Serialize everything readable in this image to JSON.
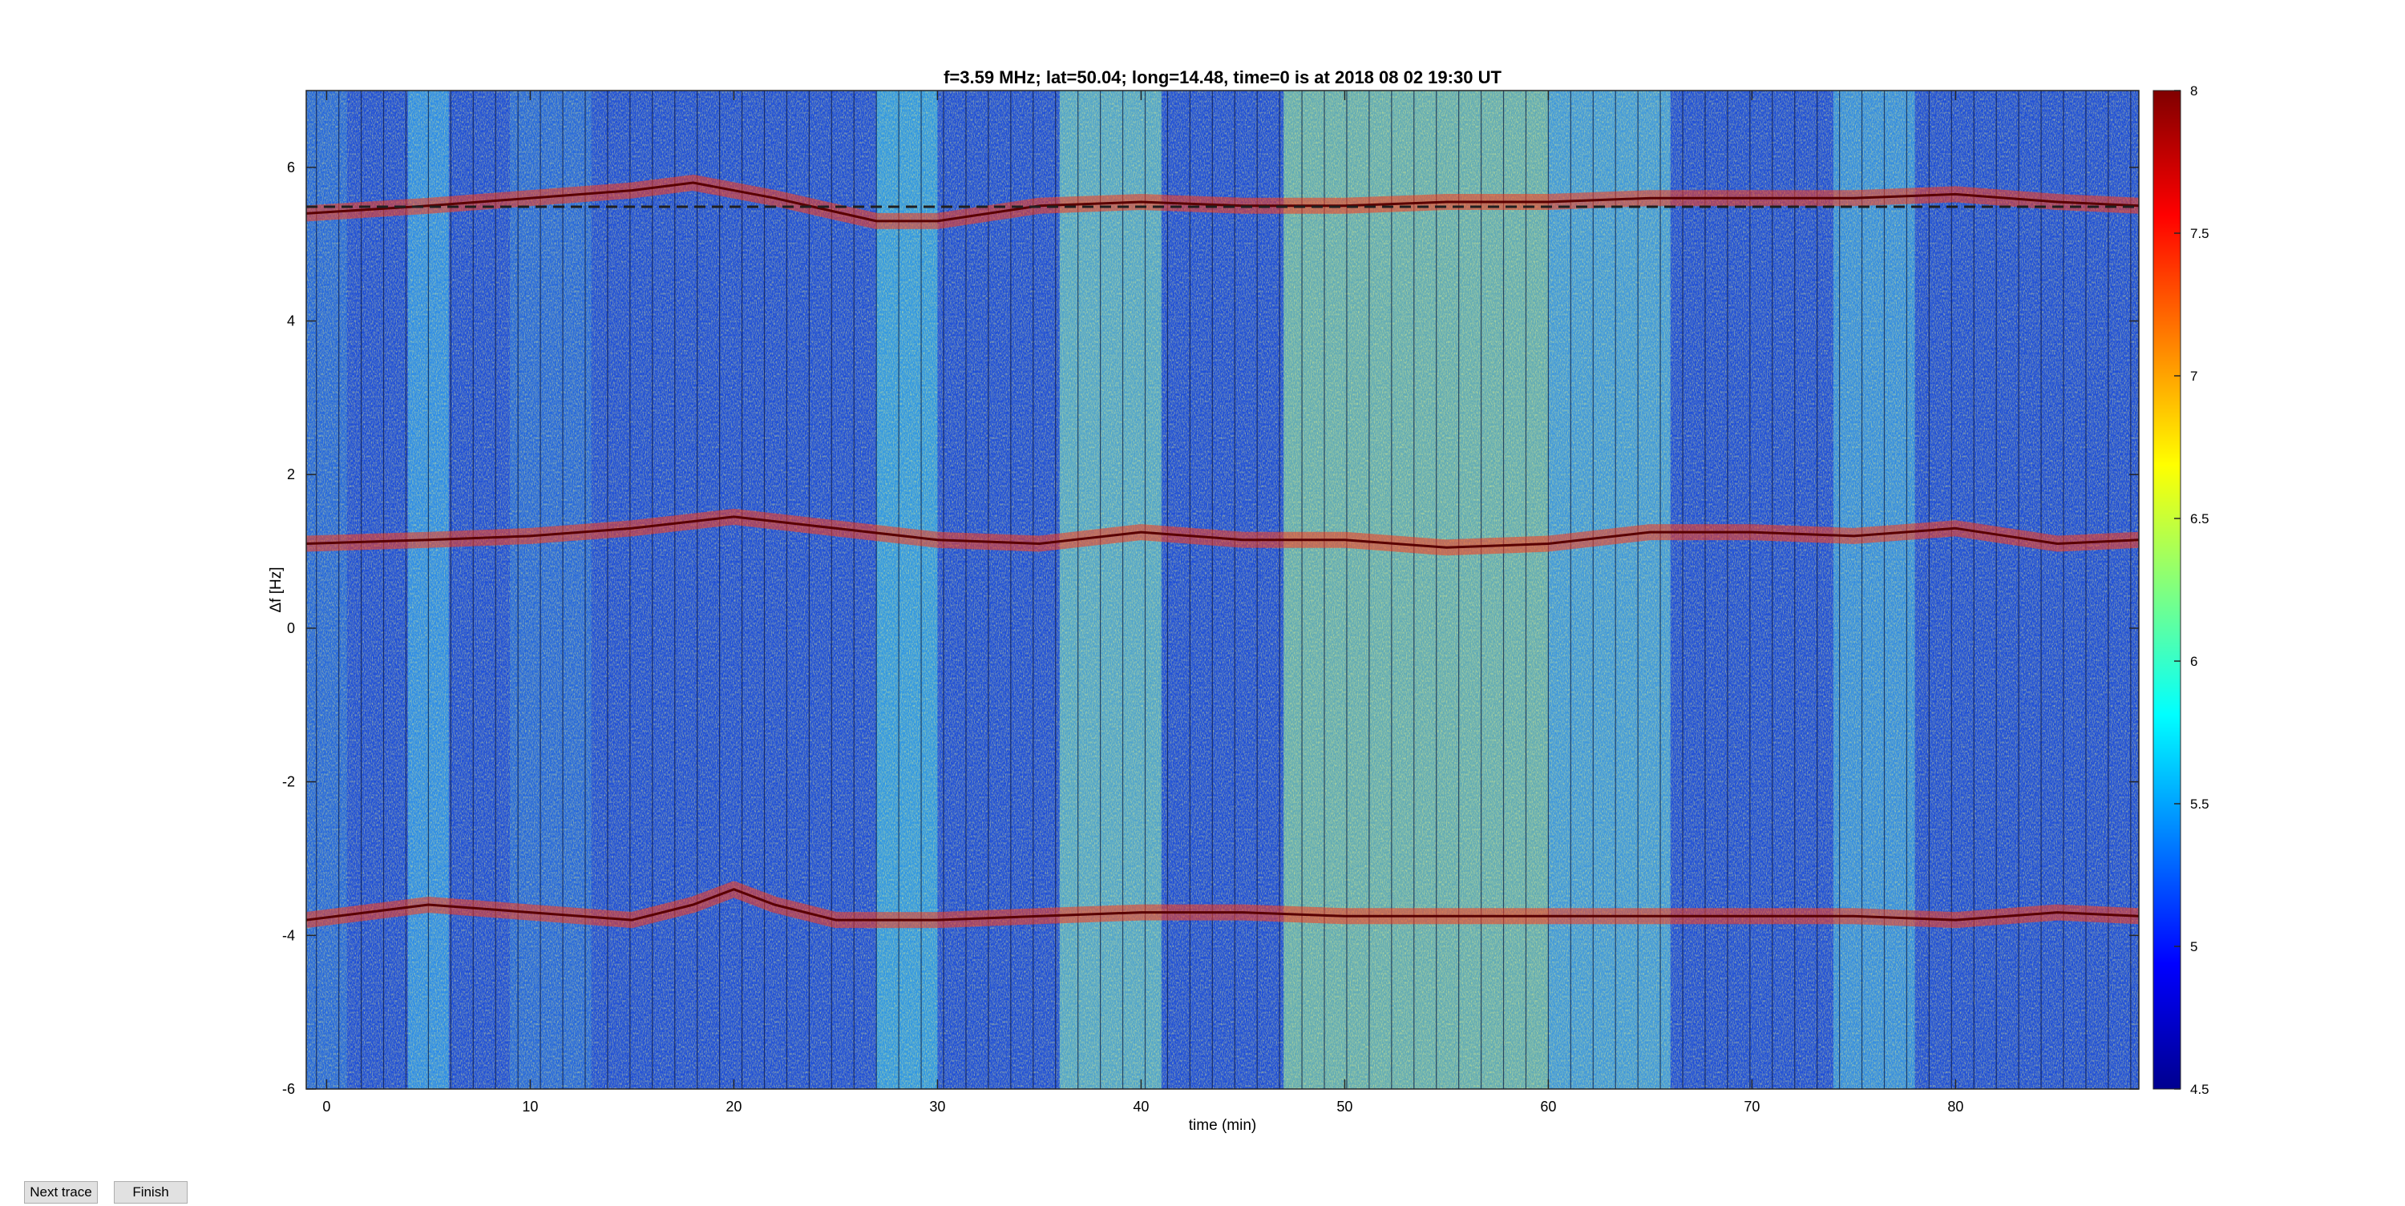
{
  "chart_data": {
    "type": "heatmap",
    "title": "f=3.59 MHz;  lat=50.04; long=14.48, time=0 is at 2018 08 02 19:30 UT",
    "xlabel": "time (min)",
    "ylabel": "Δf [Hz]",
    "xlim": [
      -1,
      89
    ],
    "ylim": [
      -6,
      7
    ],
    "xticks": [
      0,
      10,
      20,
      30,
      40,
      50,
      60,
      70,
      80
    ],
    "yticks": [
      -6,
      -4,
      -2,
      0,
      2,
      4,
      6
    ],
    "colormap": "jet",
    "clim": [
      4.5,
      8
    ],
    "colorbar_ticks": [
      "4.5",
      "5",
      "5.5",
      "6",
      "6.5",
      "7",
      "7.5",
      "8"
    ],
    "background_level": 5.3,
    "traces": [
      {
        "x": [
          -1,
          5,
          10,
          15,
          18,
          22,
          27,
          30,
          35,
          40,
          45,
          50,
          55,
          60,
          65,
          70,
          75,
          80,
          85,
          89
        ],
        "y": [
          5.4,
          5.5,
          5.6,
          5.7,
          5.8,
          5.6,
          5.3,
          5.3,
          5.5,
          5.55,
          5.5,
          5.5,
          5.55,
          5.55,
          5.6,
          5.6,
          5.6,
          5.65,
          5.55,
          5.5
        ]
      },
      {
        "x": [
          -1,
          5,
          10,
          15,
          20,
          25,
          30,
          35,
          40,
          45,
          50,
          55,
          60,
          65,
          70,
          75,
          80,
          85,
          89
        ],
        "y": [
          1.1,
          1.15,
          1.2,
          1.3,
          1.45,
          1.3,
          1.15,
          1.1,
          1.25,
          1.15,
          1.15,
          1.05,
          1.1,
          1.25,
          1.25,
          1.2,
          1.3,
          1.1,
          1.15
        ]
      },
      {
        "x": [
          -1,
          5,
          10,
          15,
          18,
          20,
          22,
          25,
          30,
          35,
          40,
          45,
          50,
          55,
          60,
          65,
          70,
          75,
          80,
          85,
          89
        ],
        "y": [
          -3.8,
          -3.6,
          -3.7,
          -3.8,
          -3.6,
          -3.4,
          -3.6,
          -3.8,
          -3.8,
          -3.75,
          -3.7,
          -3.7,
          -3.75,
          -3.75,
          -3.75,
          -3.75,
          -3.75,
          -3.75,
          -3.8,
          -3.7,
          -3.75
        ]
      }
    ],
    "grid": false,
    "legend": "none"
  },
  "buttons": {
    "next_trace": "Next trace",
    "finish": "Finish"
  },
  "colors": {
    "trace_line": "#5a0000",
    "dashed_line": "#202020",
    "axis": "#262626"
  }
}
